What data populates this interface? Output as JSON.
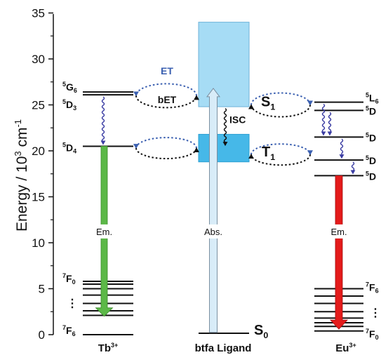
{
  "axis": {
    "ylabel_prefix": "Energy / 10",
    "ylabel_sup": "3",
    "ylabel_unit": " cm",
    "ylabel_sup2": "-1",
    "ticks": [
      "0",
      "5",
      "10",
      "15",
      "20",
      "25",
      "30",
      "35"
    ]
  },
  "ligand": {
    "label": "btfa Ligand",
    "s0": "S",
    "s0_sub": "0",
    "s1": "S",
    "s1_sub": "1",
    "t1": "T",
    "t1_sub": "1",
    "abs": "Abs.",
    "isc": "ISC",
    "s1_range": [
      24.8,
      34.0
    ],
    "t1_range": [
      18.8,
      21.8
    ]
  },
  "transfer": {
    "et": "ET",
    "bet": "bET"
  },
  "tb": {
    "ion": "Tb",
    "ion_sup": "3+",
    "em": "Em.",
    "levels": {
      "g6": {
        "sup": "5",
        "base": "G",
        "sub": "6"
      },
      "d3": {
        "sup": "5",
        "base": "D",
        "sub": "3"
      },
      "d4": {
        "sup": "5",
        "base": "D",
        "sub": "4"
      },
      "f0": {
        "sup": "7",
        "base": "F",
        "sub": "0"
      },
      "f6": {
        "sup": "7",
        "base": "F",
        "sub": "6"
      },
      "dots": "⋮"
    },
    "energies": {
      "g6": 26.4,
      "d3": 26.1,
      "d4": 20.5,
      "f_manifold": [
        5.8,
        5.5,
        5.0,
        4.3,
        3.4,
        2.6,
        2.1
      ],
      "f6": 0
    }
  },
  "eu": {
    "ion": "Eu",
    "ion_sup": "3+",
    "em": "Em.",
    "levels": {
      "l6": {
        "sup": "5",
        "base": "L",
        "sub": "6"
      },
      "d3": {
        "sup": "5",
        "base": "D",
        "sub": ""
      },
      "d2": {
        "sup": "5",
        "base": "D",
        "sub": ""
      },
      "d1": {
        "sup": "5",
        "base": "D",
        "sub": ""
      },
      "d0": {
        "sup": "5",
        "base": "D",
        "sub": ""
      },
      "f6": {
        "sup": "7",
        "base": "F",
        "sub": "6"
      },
      "f0": {
        "sup": "7",
        "base": "F",
        "sub": "0"
      },
      "dots": "⋮"
    },
    "energies": {
      "l6": 25.3,
      "d3": 24.4,
      "d2": 21.5,
      "d1": 19.0,
      "d0": 17.3,
      "f_manifold": [
        5.0,
        4.2,
        3.4,
        2.5,
        1.8,
        1.3,
        0.9,
        0.4
      ]
    }
  },
  "colors": {
    "tb_emission": "#5cb848",
    "eu_emission": "#e41b1b",
    "abs_arrow": "#d8ecf8",
    "s1_box": "#a6dcf5",
    "t1_box": "#46b8e8",
    "et_arrow": "#3a5fb0",
    "wavy": "#3b3da3"
  }
}
